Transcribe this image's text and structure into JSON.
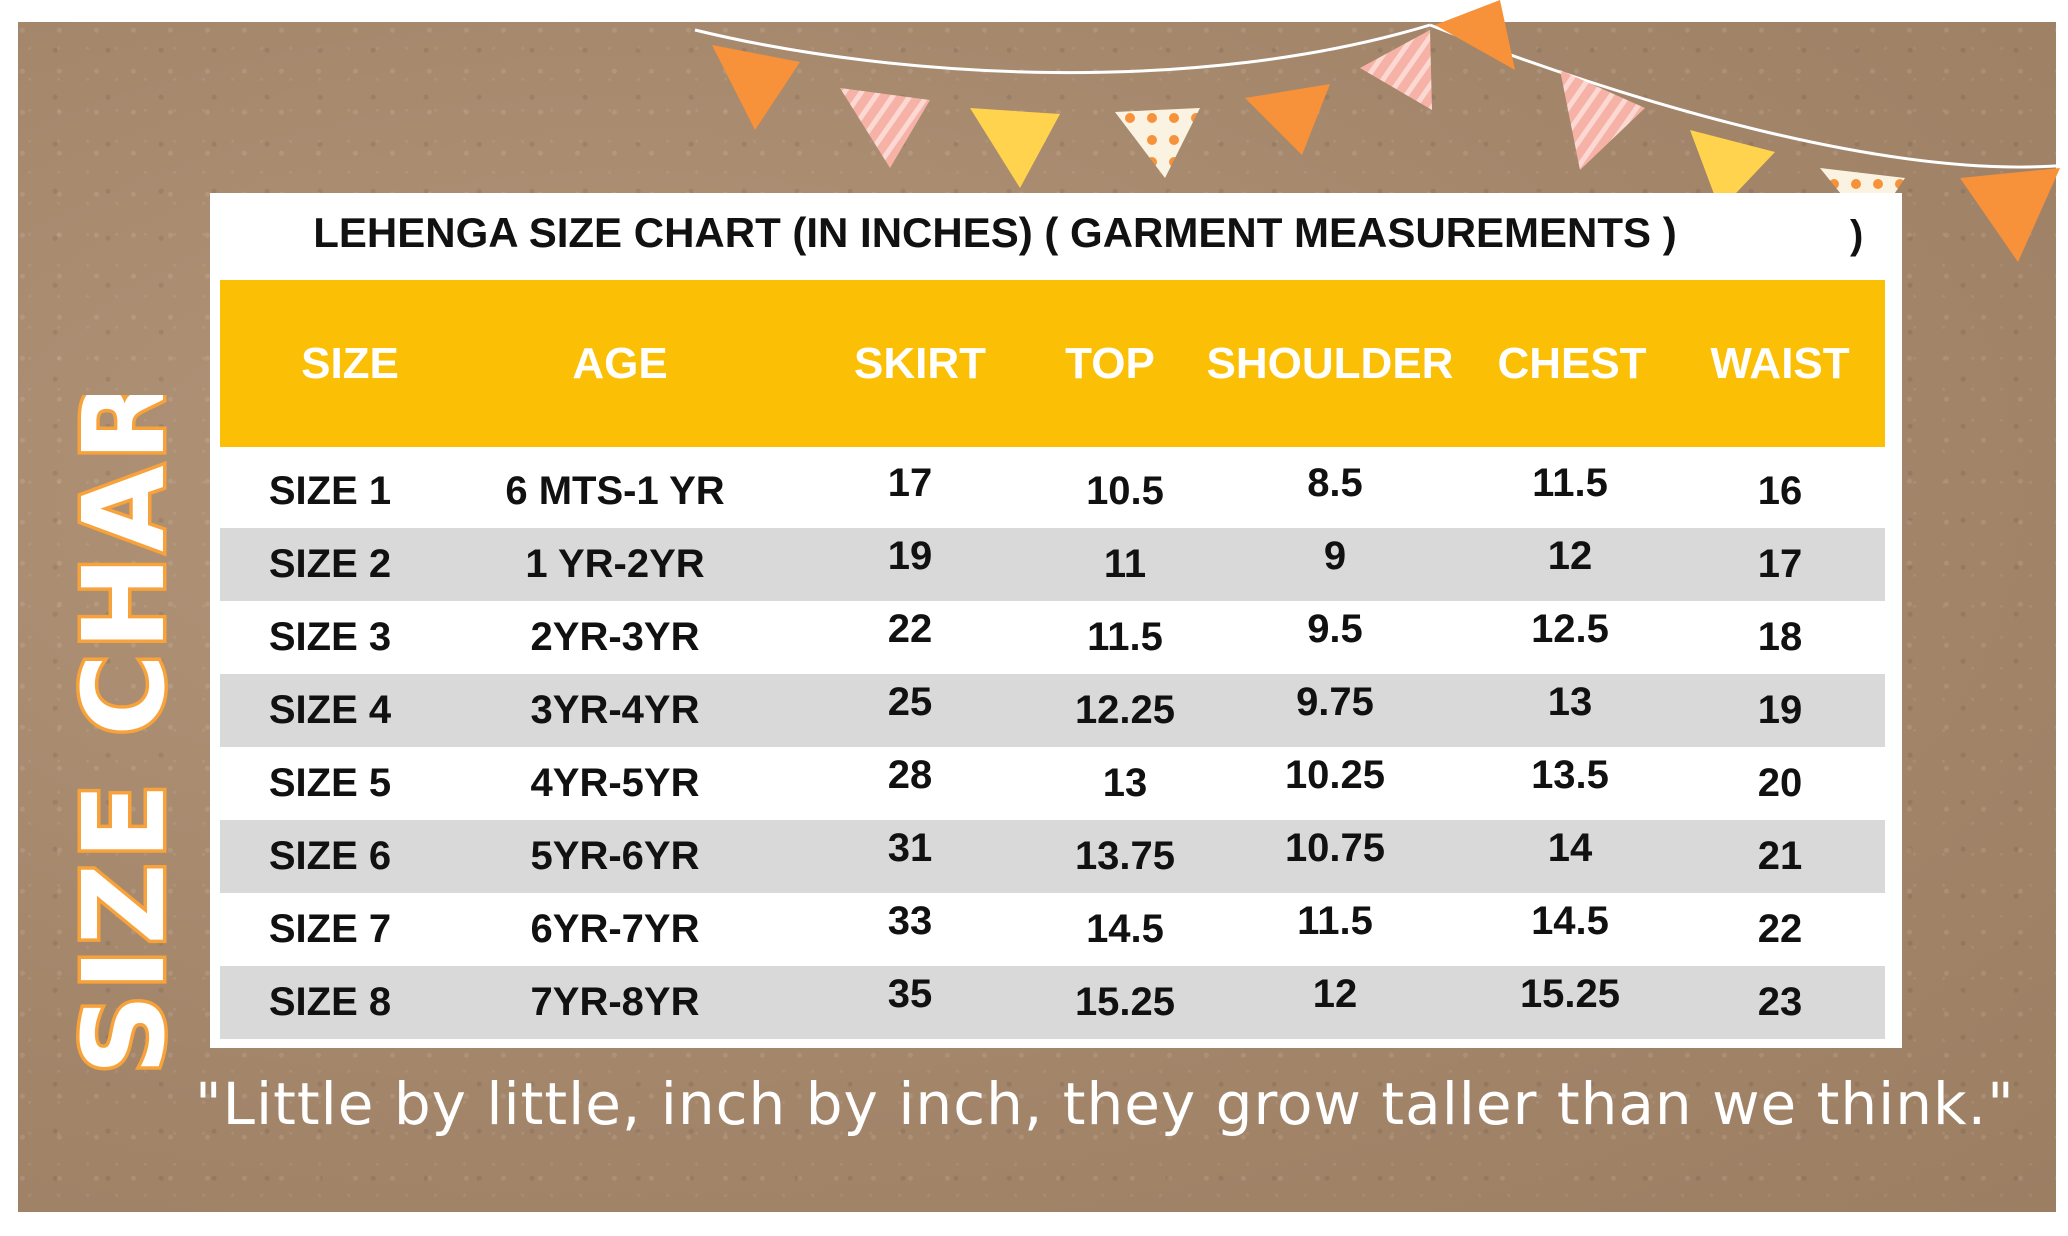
{
  "chart_data": {
    "type": "table",
    "title": "LEHENGA SIZE CHART (IN INCHES) ( GARMENT MEASUREMENTS )",
    "title_stray": ")",
    "columns": [
      "SIZE",
      "AGE",
      "SKIRT",
      "TOP",
      "SHOULDER",
      "CHEST",
      "WAIST"
    ],
    "rows": [
      [
        "SIZE 1",
        "6 MTS-1 YR",
        "17",
        "10.5",
        "8.5",
        "11.5",
        "16"
      ],
      [
        "SIZE 2",
        "1 YR-2YR",
        "19",
        "11",
        "9",
        "12",
        "17"
      ],
      [
        "SIZE 3",
        "2YR-3YR",
        "22",
        "11.5",
        "9.5",
        "12.5",
        "18"
      ],
      [
        "SIZE 4",
        "3YR-4YR",
        "25",
        "12.25",
        "9.75",
        "13",
        "19"
      ],
      [
        "SIZE 5",
        "4YR-5YR",
        "28",
        "13",
        "10.25",
        "13.5",
        "20"
      ],
      [
        "SIZE 6",
        "5YR-6YR",
        "31",
        "13.75",
        "10.75",
        "14",
        "21"
      ],
      [
        "SIZE 7",
        "6YR-7YR",
        "33",
        "14.5",
        "11.5",
        "14.5",
        "22"
      ],
      [
        "SIZE 8",
        "7YR-8YR",
        "35",
        "15.25",
        "12",
        "15.25",
        "23"
      ]
    ],
    "header_color": "#fbbf05",
    "stripe_color": "#d9d9d9"
  },
  "side_label": "SIZE CHART",
  "quote": "\"Little by little, inch by inch, they grow taller than we think.\"",
  "colors": {
    "kraft": "#a88a6a",
    "bunting_orange": "#f7923a",
    "bunting_pink": "#f6b2a7",
    "bunting_yellow": "#ffd34d",
    "bunting_cream": "#fbf3e2",
    "side_label_orange": "#f7a23a"
  },
  "decor": {
    "bunting_pattern": [
      "orange",
      "pink-striped",
      "yellow",
      "cream-dotted",
      "orange",
      "pink-striped",
      "orange",
      "pink-striped",
      "yellow",
      "cream-dotted",
      "orange"
    ]
  }
}
